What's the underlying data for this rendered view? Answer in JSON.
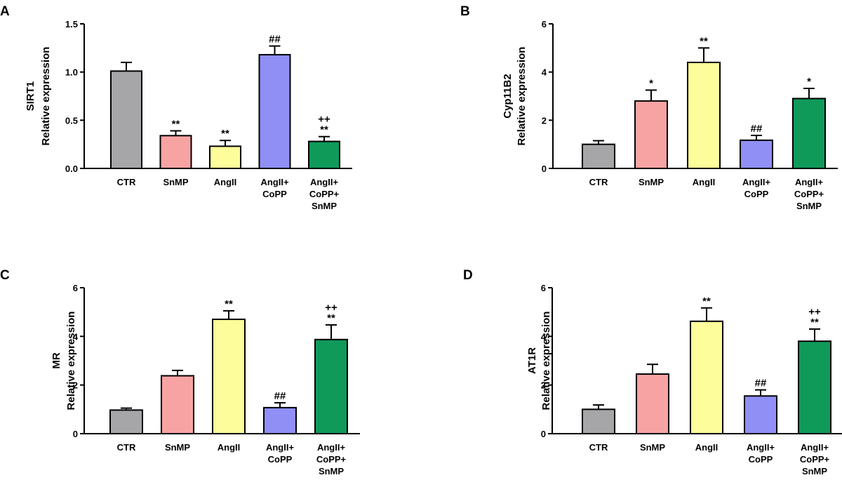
{
  "colors": {
    "CTR": "#a6a6a8",
    "SnMP": "#f7a3a3",
    "AngII": "#fdfd9b",
    "AngII+CoPP": "#8f8ff6",
    "AngII+CoPP+SnMP": "#0f9a5a"
  },
  "chart_data": [
    {
      "type": "bar",
      "panel": "A",
      "title": "",
      "ylabel_gene": "SIRT1",
      "ylabel": "Relative expression",
      "xlabel": "",
      "ylim": [
        0,
        1.5
      ],
      "yticks": [
        "0.0",
        "0.5",
        "1.0",
        "1.5"
      ],
      "yticks_values": [
        0,
        0.5,
        1.0,
        1.5
      ],
      "categories": [
        {
          "id": "CTR",
          "lines": [
            "CTR"
          ]
        },
        {
          "id": "SnMP",
          "lines": [
            "SnMP"
          ]
        },
        {
          "id": "AngII",
          "lines": [
            "AngII"
          ]
        },
        {
          "id": "AngII+CoPP",
          "lines": [
            "AngII+",
            "CoPP"
          ]
        },
        {
          "id": "AngII+CoPP+SnMP",
          "lines": [
            "AngII+",
            "CoPP+",
            "SnMP"
          ]
        }
      ],
      "values": [
        1.01,
        0.34,
        0.23,
        1.18,
        0.28
      ],
      "errors": [
        0.09,
        0.05,
        0.06,
        0.09,
        0.05
      ],
      "annotations": [
        [],
        [
          "**"
        ],
        [
          "**"
        ],
        [
          "##"
        ],
        [
          "++",
          "**"
        ]
      ]
    },
    {
      "type": "bar",
      "panel": "B",
      "title": "",
      "ylabel_gene": "Cyp11B2",
      "ylabel": "Relative expression",
      "xlabel": "",
      "ylim": [
        0,
        6
      ],
      "yticks": [
        "0",
        "2",
        "4",
        "6"
      ],
      "yticks_values": [
        0,
        2,
        4,
        6
      ],
      "categories": [
        {
          "id": "CTR",
          "lines": [
            "CTR"
          ]
        },
        {
          "id": "SnMP",
          "lines": [
            "SnMP"
          ]
        },
        {
          "id": "AngII",
          "lines": [
            "AngII"
          ]
        },
        {
          "id": "AngII+CoPP",
          "lines": [
            "AngII+",
            "CoPP"
          ]
        },
        {
          "id": "AngII+CoPP+SnMP",
          "lines": [
            "AngII+",
            "CoPP+",
            "SnMP"
          ]
        }
      ],
      "values": [
        1.0,
        2.8,
        4.4,
        1.17,
        2.9
      ],
      "errors": [
        0.15,
        0.45,
        0.6,
        0.2,
        0.42
      ],
      "annotations": [
        [],
        [
          "*"
        ],
        [
          "**"
        ],
        [
          "##"
        ],
        [
          "*"
        ]
      ]
    },
    {
      "type": "bar",
      "panel": "C",
      "title": "",
      "ylabel_gene": "MR",
      "ylabel": "Relative expression",
      "xlabel": "",
      "ylim": [
        0,
        6
      ],
      "yticks": [
        "0",
        "2",
        "4",
        "6"
      ],
      "yticks_values": [
        0,
        2,
        4,
        6
      ],
      "categories": [
        {
          "id": "CTR",
          "lines": [
            "CTR"
          ]
        },
        {
          "id": "SnMP",
          "lines": [
            "SnMP"
          ]
        },
        {
          "id": "AngII",
          "lines": [
            "AngII"
          ]
        },
        {
          "id": "AngII+CoPP",
          "lines": [
            "AngII+",
            "CoPP"
          ]
        },
        {
          "id": "AngII+CoPP+SnMP",
          "lines": [
            "AngII+",
            "CoPP+",
            "SnMP"
          ]
        }
      ],
      "values": [
        0.97,
        2.38,
        4.7,
        1.07,
        3.87
      ],
      "errors": [
        0.08,
        0.22,
        0.35,
        0.2,
        0.6
      ],
      "annotations": [
        [],
        [],
        [
          "**"
        ],
        [
          "##"
        ],
        [
          "++",
          "**"
        ]
      ]
    },
    {
      "type": "bar",
      "panel": "D",
      "title": "",
      "ylabel_gene": "AT1R",
      "ylabel": "Relative expression",
      "xlabel": "",
      "ylim": [
        0,
        6
      ],
      "yticks": [
        "0",
        "2",
        "4",
        "6"
      ],
      "yticks_values": [
        0,
        2,
        4,
        6
      ],
      "categories": [
        {
          "id": "CTR",
          "lines": [
            "CTR"
          ]
        },
        {
          "id": "SnMP",
          "lines": [
            "SnMP"
          ]
        },
        {
          "id": "AngII",
          "lines": [
            "AngII"
          ]
        },
        {
          "id": "AngII+CoPP",
          "lines": [
            "AngII+",
            "CoPP"
          ]
        },
        {
          "id": "AngII+CoPP+SnMP",
          "lines": [
            "AngII+",
            "CoPP+",
            "SnMP"
          ]
        }
      ],
      "values": [
        1.0,
        2.45,
        4.62,
        1.55,
        3.8
      ],
      "errors": [
        0.18,
        0.4,
        0.55,
        0.25,
        0.5
      ],
      "annotations": [
        [],
        [],
        [
          "**"
        ],
        [
          "##"
        ],
        [
          "++",
          "**"
        ]
      ]
    }
  ]
}
